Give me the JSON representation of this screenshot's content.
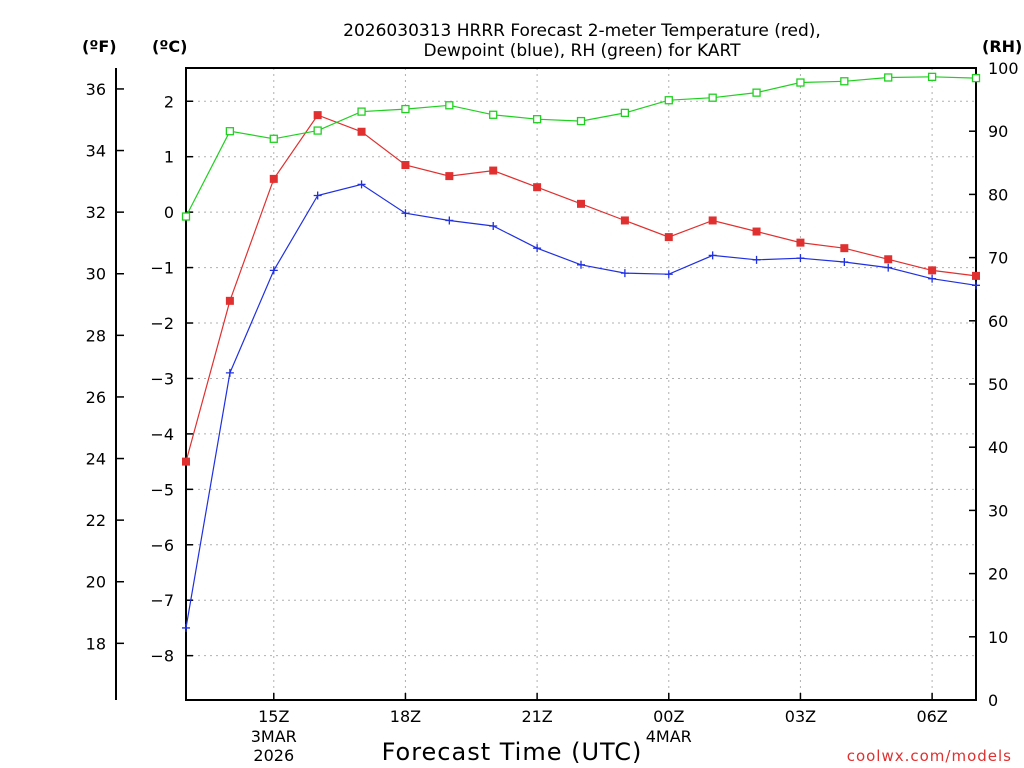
{
  "chart_data": {
    "type": "line",
    "title_line1": "2026030313 HRRR Forecast 2-meter Temperature (red),",
    "title_line2": "Dewpoint (blue), RH (green) for KART",
    "unit_labels": {
      "fahrenheit": "(ºF)",
      "celsius": "(ºC)",
      "rh": "(RH)"
    },
    "xlabel": "Forecast Time (UTC)",
    "credit": "coolwx.com/models",
    "x_hours": [
      13,
      14,
      15,
      16,
      17,
      18,
      19,
      20,
      21,
      22,
      23,
      24,
      25,
      26,
      27,
      28,
      29,
      30,
      31
    ],
    "xlim": [
      13,
      31
    ],
    "x_ticks": [
      {
        "x": 15,
        "label": "15Z",
        "sub1": "3MAR",
        "sub2": "2026"
      },
      {
        "x": 18,
        "label": "18Z",
        "sub1": "",
        "sub2": ""
      },
      {
        "x": 21,
        "label": "21Z",
        "sub1": "",
        "sub2": ""
      },
      {
        "x": 24,
        "label": "00Z",
        "sub1": "4MAR",
        "sub2": ""
      },
      {
        "x": 27,
        "label": "03Z",
        "sub1": "",
        "sub2": ""
      },
      {
        "x": 30,
        "label": "06Z",
        "sub1": "",
        "sub2": ""
      }
    ],
    "celsius_ylim": [
      -8.8,
      2.6
    ],
    "celsius_ticks": [
      "2",
      "1",
      "0",
      "-1",
      "-2",
      "-3",
      "-4",
      "-5",
      "-6",
      "-7",
      "-8"
    ],
    "fahrenheit_ticks": [
      "36",
      "34",
      "32",
      "30",
      "28",
      "26",
      "24",
      "22",
      "20",
      "18"
    ],
    "rh_ylim": [
      0,
      100
    ],
    "rh_ticks": [
      "100",
      "90",
      "80",
      "70",
      "60",
      "50",
      "40",
      "30",
      "20",
      "10",
      "0"
    ],
    "series": [
      {
        "name": "Temperature",
        "units": "C",
        "color": "#e03030",
        "marker": "filled-square",
        "values": [
          -4.5,
          -1.6,
          0.6,
          1.75,
          1.45,
          0.85,
          0.65,
          0.75,
          0.45,
          0.15,
          -0.15,
          -0.45,
          -0.15,
          -0.35,
          -0.55,
          -0.65,
          -0.85,
          -1.05,
          -1.15
        ]
      },
      {
        "name": "Dewpoint",
        "units": "C",
        "color": "#2030e0",
        "marker": "plus",
        "values": [
          -7.5,
          -2.9,
          -1.05,
          0.3,
          0.5,
          -0.02,
          -0.15,
          -0.25,
          -0.65,
          -0.95,
          -1.1,
          -1.12,
          -0.78,
          -0.86,
          -0.83,
          -0.9,
          -1.0,
          -1.2,
          -1.32
        ]
      },
      {
        "name": "RH",
        "units": "%",
        "color": "#20d020",
        "marker": "open-square",
        "values": [
          76.5,
          90,
          88.8,
          90.1,
          93.1,
          93.5,
          94.1,
          92.6,
          91.9,
          91.6,
          92.9,
          94.9,
          95.3,
          96.1,
          97.7,
          97.9,
          98.5,
          98.6,
          98.4
        ]
      }
    ]
  }
}
